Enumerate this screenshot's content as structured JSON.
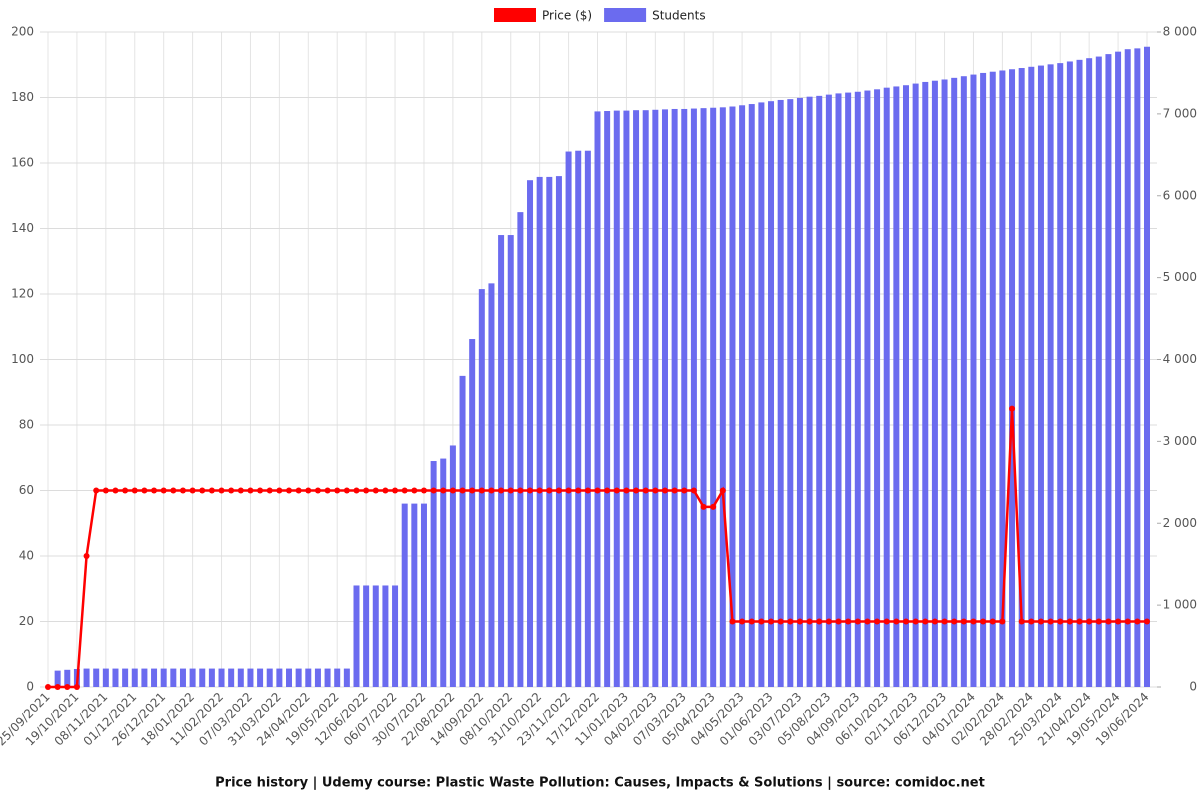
{
  "chart_data": {
    "type": "bar-line",
    "title": "Price history | Udemy course: Plastic Waste Pollution: Causes, Impacts & Solutions | source: comidoc.net",
    "categories": [
      "25/09/2021",
      null,
      null,
      "19/10/2021",
      null,
      null,
      "08/11/2021",
      null,
      null,
      "01/12/2021",
      null,
      null,
      "26/12/2021",
      null,
      null,
      "18/01/2022",
      null,
      null,
      "11/02/2022",
      null,
      null,
      "07/03/2022",
      null,
      null,
      "31/03/2022",
      null,
      null,
      "24/04/2022",
      null,
      null,
      "19/05/2022",
      null,
      null,
      "12/06/2022",
      null,
      null,
      "06/07/2022",
      null,
      null,
      "30/07/2022",
      null,
      null,
      "22/08/2022",
      null,
      null,
      "14/09/2022",
      null,
      null,
      "08/10/2022",
      null,
      null,
      "31/10/2022",
      null,
      null,
      "23/11/2022",
      null,
      null,
      "17/12/2022",
      null,
      null,
      "11/01/2023",
      null,
      null,
      "04/02/2023",
      null,
      null,
      "07/03/2023",
      null,
      null,
      "05/04/2023",
      null,
      null,
      "04/05/2023",
      null,
      null,
      "01/06/2023",
      null,
      null,
      "03/07/2023",
      null,
      null,
      "05/08/2023",
      null,
      null,
      "04/09/2023",
      null,
      null,
      "06/10/2023",
      null,
      null,
      "02/11/2023",
      null,
      null,
      "06/12/2023",
      null,
      null,
      "04/01/2024",
      null,
      null,
      "02/02/2024",
      null,
      null,
      "28/02/2024",
      null,
      null,
      "25/03/2024",
      null,
      null,
      "21/04/2024",
      null,
      null,
      "19/05/2024",
      null,
      null,
      "19/06/2024"
    ],
    "series": [
      {
        "name": "Price ($)",
        "color": "#ff0000",
        "kind": "line",
        "values": [
          0,
          0,
          0,
          0,
          40,
          60,
          60,
          60,
          60,
          60,
          60,
          60,
          60,
          60,
          60,
          60,
          60,
          60,
          60,
          60,
          60,
          60,
          60,
          60,
          60,
          60,
          60,
          60,
          60,
          60,
          60,
          60,
          60,
          60,
          60,
          60,
          60,
          60,
          60,
          60,
          60,
          60,
          60,
          60,
          60,
          60,
          60,
          60,
          60,
          60,
          60,
          60,
          60,
          60,
          60,
          60,
          60,
          60,
          60,
          60,
          60,
          60,
          60,
          60,
          60,
          60,
          60,
          60,
          55,
          55,
          60,
          20,
          20,
          20,
          20,
          20,
          20,
          20,
          20,
          20,
          20,
          20,
          20,
          20,
          20,
          20,
          20,
          20,
          20,
          20,
          20,
          20,
          20,
          20,
          20,
          20,
          20,
          20,
          20,
          20,
          85,
          20,
          20,
          20,
          20,
          20,
          20,
          20,
          20,
          20,
          20,
          20,
          20,
          20,
          20
        ]
      },
      {
        "name": "Students",
        "color": "#6b6bef",
        "kind": "bar",
        "axis": "y2",
        "values": [
          0,
          200,
          210,
          220,
          225,
          225,
          225,
          225,
          225,
          225,
          225,
          225,
          225,
          225,
          225,
          225,
          225,
          225,
          225,
          225,
          225,
          225,
          225,
          225,
          225,
          225,
          225,
          225,
          225,
          225,
          225,
          225,
          1240,
          1240,
          1240,
          1240,
          1240,
          2240,
          2240,
          2240,
          2760,
          2790,
          2950,
          3800,
          4250,
          4860,
          4930,
          5520,
          5520,
          5800,
          6190,
          6230,
          6230,
          6240,
          6540,
          6550,
          6550,
          7030,
          7035,
          7040,
          7040,
          7045,
          7045,
          7050,
          7055,
          7060,
          7060,
          7065,
          7070,
          7075,
          7080,
          7090,
          7105,
          7120,
          7140,
          7155,
          7170,
          7180,
          7195,
          7210,
          7220,
          7235,
          7250,
          7260,
          7270,
          7285,
          7300,
          7320,
          7335,
          7350,
          7370,
          7390,
          7405,
          7420,
          7440,
          7460,
          7480,
          7500,
          7515,
          7530,
          7545,
          7560,
          7575,
          7590,
          7605,
          7620,
          7640,
          7660,
          7680,
          7700,
          7730,
          7760,
          7790,
          7800,
          7820
        ]
      }
    ],
    "ylim": [
      0,
      200
    ],
    "yticks": [
      0,
      20,
      40,
      60,
      80,
      100,
      120,
      140,
      160,
      180,
      200
    ],
    "y2lim": [
      0,
      8000
    ],
    "y2ticks": [
      0,
      {
        "value": 1000,
        "label": "1 000"
      },
      {
        "value": 2000,
        "label": "2 000"
      },
      {
        "value": 3000,
        "label": "3 000"
      },
      {
        "value": 4000,
        "label": "4 000"
      },
      {
        "value": 5000,
        "label": "5 000"
      },
      {
        "value": 6000,
        "label": "6 000"
      },
      {
        "value": 7000,
        "label": "7 000"
      },
      {
        "value": 8000,
        "label": "8 000"
      }
    ],
    "grid": true,
    "legend": "top"
  }
}
